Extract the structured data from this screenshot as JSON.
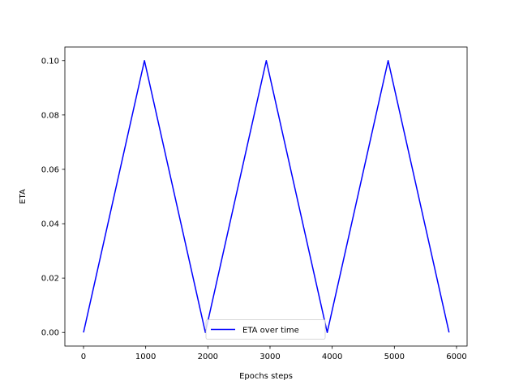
{
  "chart_data": {
    "type": "line",
    "title": "",
    "xlabel": "Epochs steps",
    "ylabel": "ETA",
    "xlim": [
      -300,
      6170
    ],
    "ylim": [
      -0.005,
      0.105
    ],
    "xticks": [
      0,
      1000,
      2000,
      3000,
      4000,
      5000,
      6000
    ],
    "yticks": [
      0.0,
      0.02,
      0.04,
      0.06,
      0.08,
      0.1
    ],
    "xtick_labels": [
      "0",
      "1000",
      "2000",
      "3000",
      "4000",
      "5000",
      "6000"
    ],
    "ytick_labels": [
      "0.00",
      "0.02",
      "0.04",
      "0.06",
      "0.08",
      "0.10"
    ],
    "grid": false,
    "legend": {
      "position": "lower-center"
    },
    "series": [
      {
        "name": "ETA over time",
        "color": "#0000ff",
        "x": [
          0,
          980,
          1960,
          2940,
          3920,
          4900,
          5880
        ],
        "y": [
          0.0,
          0.1,
          0.0,
          0.1,
          0.0,
          0.1,
          0.0
        ]
      }
    ]
  }
}
